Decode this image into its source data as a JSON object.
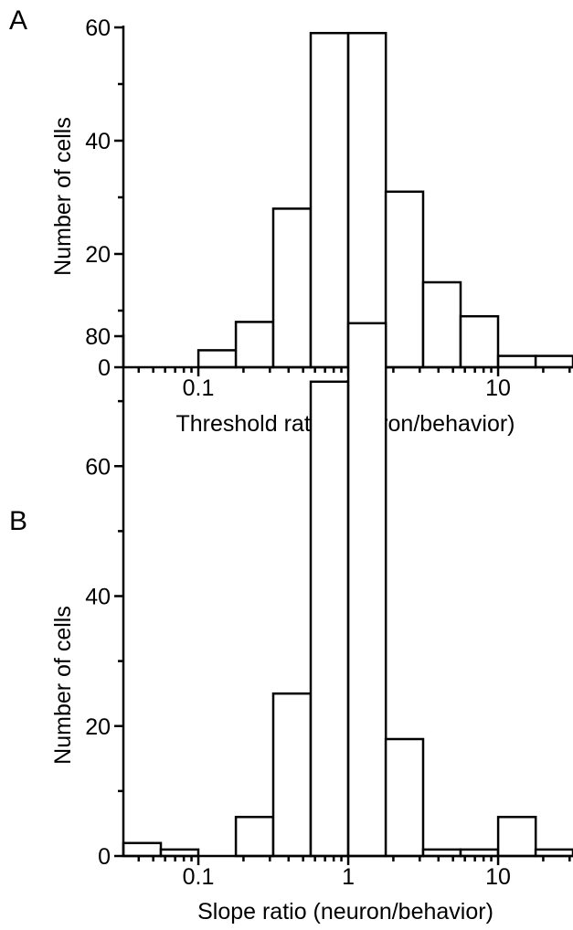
{
  "chart_data": [
    {
      "panel": "A",
      "type": "bar",
      "x_scale": "log",
      "xlabel": "Threshold ratio (neuron/behavior)",
      "ylabel": "Number of cells",
      "ylim": [
        0,
        60
      ],
      "xlim": [
        0.0316,
        31.6
      ],
      "yticks": [
        0,
        20,
        40,
        60
      ],
      "xticks": [
        {
          "value": 0.1,
          "label": "0.1"
        },
        {
          "value": 1,
          "label": "1"
        },
        {
          "value": 10,
          "label": "10"
        }
      ],
      "bins": [
        {
          "x0": 0.1,
          "x1": 0.178,
          "count": 3
        },
        {
          "x0": 0.178,
          "x1": 0.316,
          "count": 8
        },
        {
          "x0": 0.316,
          "x1": 0.562,
          "count": 28
        },
        {
          "x0": 0.562,
          "x1": 1.0,
          "count": 59
        },
        {
          "x0": 1.0,
          "x1": 1.78,
          "count": 59
        },
        {
          "x0": 1.78,
          "x1": 3.16,
          "count": 31
        },
        {
          "x0": 3.16,
          "x1": 5.62,
          "count": 15
        },
        {
          "x0": 5.62,
          "x1": 10.0,
          "count": 9
        },
        {
          "x0": 10.0,
          "x1": 17.8,
          "count": 2
        },
        {
          "x0": 17.8,
          "x1": 31.6,
          "count": 2
        }
      ]
    },
    {
      "panel": "B",
      "type": "bar",
      "x_scale": "log",
      "xlabel": "Slope ratio (neuron/behavior)",
      "ylabel": "Number of cells",
      "ylim": [
        0,
        80
      ],
      "xlim": [
        0.0316,
        31.6
      ],
      "yticks": [
        0,
        20,
        40,
        60,
        80
      ],
      "xticks": [
        {
          "value": 0.1,
          "label": "0.1"
        },
        {
          "value": 1,
          "label": "1"
        },
        {
          "value": 10,
          "label": "10"
        }
      ],
      "bins": [
        {
          "x0": 0.0316,
          "x1": 0.0562,
          "count": 2
        },
        {
          "x0": 0.0562,
          "x1": 0.1,
          "count": 1
        },
        {
          "x0": 0.178,
          "x1": 0.316,
          "count": 6
        },
        {
          "x0": 0.316,
          "x1": 0.562,
          "count": 25
        },
        {
          "x0": 0.562,
          "x1": 1.0,
          "count": 73
        },
        {
          "x0": 1.0,
          "x1": 1.78,
          "count": 82
        },
        {
          "x0": 1.78,
          "x1": 3.16,
          "count": 18
        },
        {
          "x0": 3.16,
          "x1": 5.62,
          "count": 1
        },
        {
          "x0": 5.62,
          "x1": 10.0,
          "count": 1
        },
        {
          "x0": 10.0,
          "x1": 17.8,
          "count": 6
        },
        {
          "x0": 17.8,
          "x1": 31.6,
          "count": 1
        }
      ]
    }
  ]
}
